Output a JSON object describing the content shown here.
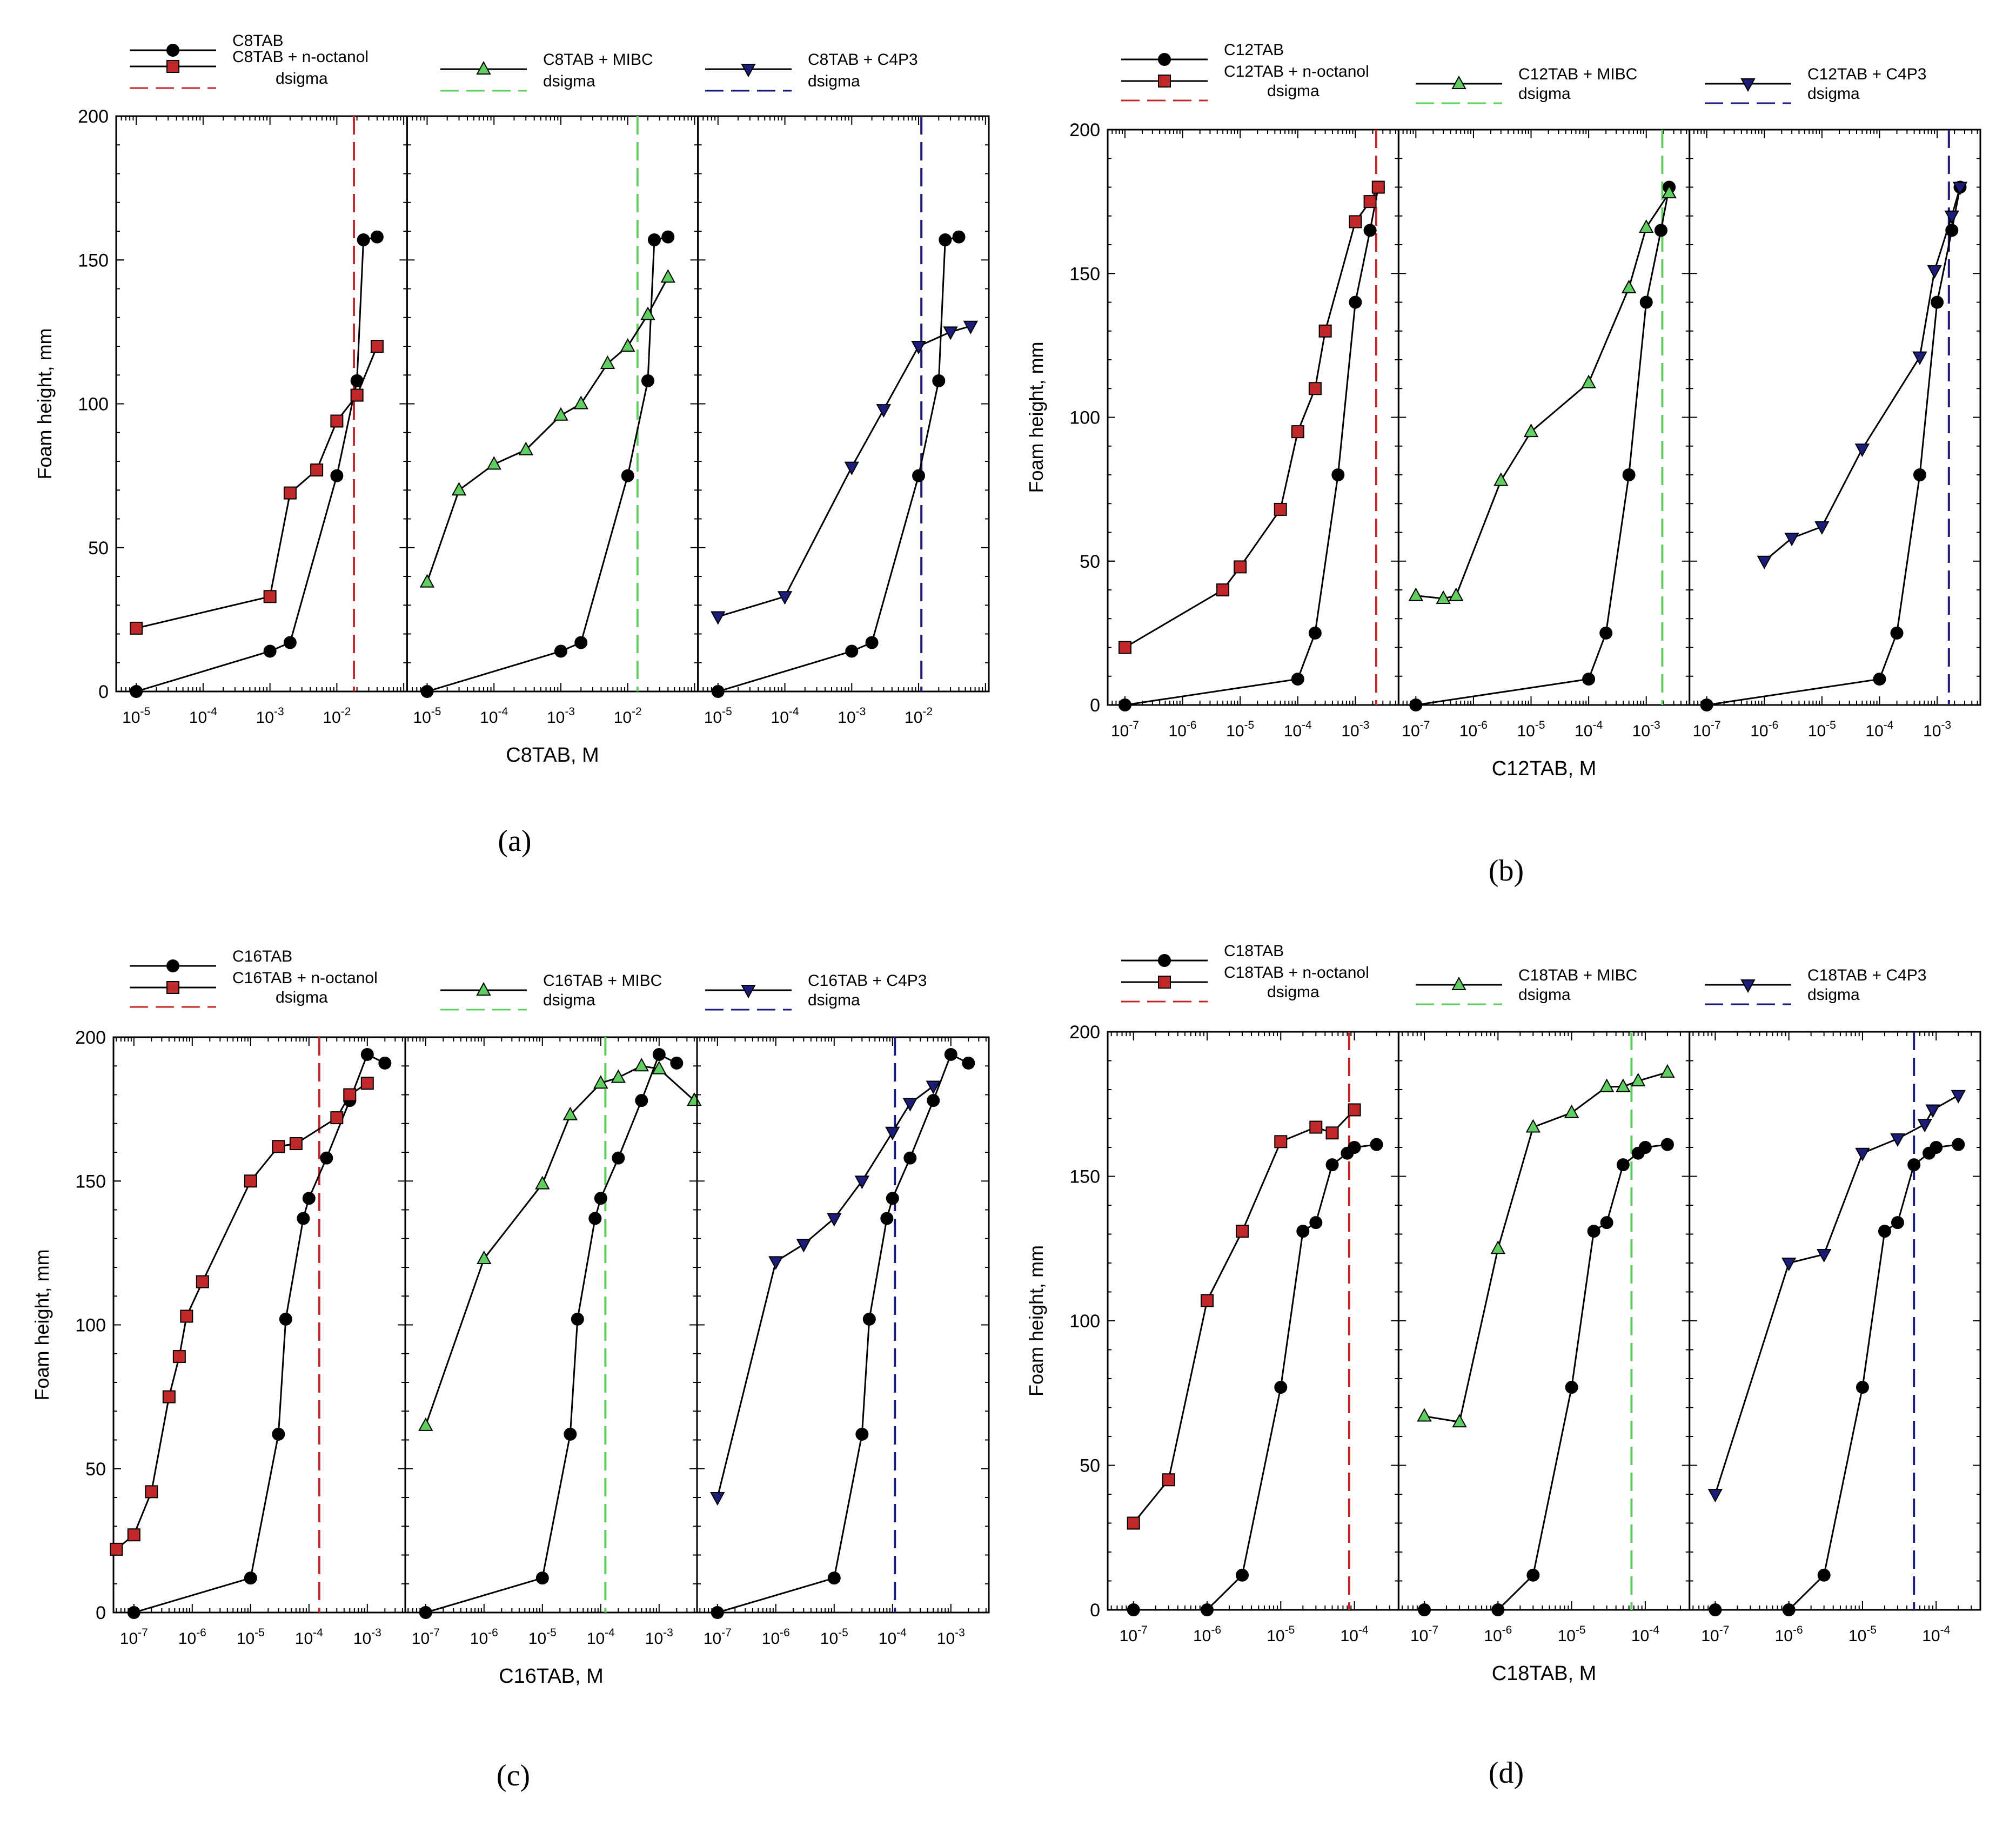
{
  "chart_data": [
    {
      "type": "line",
      "caption": "(a)",
      "ylabel": "Foam height, mm",
      "xlabel": "C8TAB, M",
      "ylim": [
        0,
        200
      ],
      "yticks": [
        0,
        50,
        100,
        150,
        200
      ],
      "xscale": "log",
      "xlim_exp": [
        -5.3,
        -0.95
      ],
      "xtick_exps": [
        -5,
        -4,
        -3,
        -2
      ],
      "baseline": {
        "name": "C8TAB",
        "x": [
          1e-05,
          0.001,
          0.002,
          0.01,
          0.02,
          0.025,
          0.04
        ],
        "y": [
          0,
          14,
          17,
          75,
          108,
          157,
          158
        ]
      },
      "legend_base": "C8TAB",
      "legend_dsigma": "dsigma",
      "panels": [
        {
          "name": "C8TAB + n-octanol",
          "marker": "square",
          "color": "#c0282a",
          "x": [
            1e-05,
            0.001,
            0.002,
            0.005,
            0.01,
            0.02,
            0.04
          ],
          "y": [
            22,
            33,
            69,
            77,
            94,
            103,
            120
          ],
          "dsigma_x": 0.018
        },
        {
          "name": "C8TAB + MIBC",
          "marker": "triangle-up",
          "color": "#5fd05f",
          "x": [
            1e-05,
            3e-05,
            0.0001,
            0.0003,
            0.001,
            0.002,
            0.005,
            0.01,
            0.02,
            0.04
          ],
          "y": [
            38,
            70,
            79,
            84,
            96,
            100,
            114,
            120,
            131,
            144
          ],
          "dsigma_x": 0.014
        },
        {
          "name": "C8TAB + C4P3",
          "marker": "triangle-down",
          "color": "#1c1c7a",
          "x": [
            1e-05,
            0.0001,
            0.001,
            0.003,
            0.01,
            0.03,
            0.06
          ],
          "y": [
            26,
            33,
            78,
            98,
            120,
            125,
            127
          ],
          "dsigma_x": 0.011
        }
      ]
    },
    {
      "type": "line",
      "caption": "(b)",
      "ylabel": "Foam height, mm",
      "xlabel": "C12TAB, M",
      "ylim": [
        0,
        200
      ],
      "yticks": [
        0,
        50,
        100,
        150,
        200
      ],
      "xscale": "log",
      "xlim_exp": [
        -7.3,
        -2.25
      ],
      "xtick_exps": [
        -7,
        -6,
        -5,
        -4,
        -3
      ],
      "baseline": {
        "name": "C12TAB",
        "x": [
          1e-07,
          0.0001,
          0.0002,
          0.0005,
          0.001,
          0.0018,
          0.0025
        ],
        "y": [
          0,
          9,
          25,
          80,
          140,
          165,
          180
        ]
      },
      "legend_base": "C12TAB",
      "legend_dsigma": "dsigma",
      "panels": [
        {
          "name": "C12TAB + n-octanol",
          "marker": "square",
          "color": "#c0282a",
          "x": [
            1e-07,
            5e-06,
            1e-05,
            5e-05,
            0.0001,
            0.0002,
            0.0003,
            0.001,
            0.0018,
            0.0025
          ],
          "y": [
            20,
            40,
            48,
            68,
            95,
            110,
            130,
            168,
            175,
            180
          ],
          "dsigma_x": 0.0023
        },
        {
          "name": "C12TAB + MIBC",
          "marker": "triangle-up",
          "color": "#5fd05f",
          "x": [
            1e-07,
            3e-07,
            5e-07,
            3e-06,
            1e-05,
            0.0001,
            0.0005,
            0.001,
            0.0025
          ],
          "y": [
            38,
            37,
            38,
            78,
            95,
            112,
            145,
            166,
            178
          ],
          "dsigma_x": 0.0019
        },
        {
          "name": "C12TAB + C4P3",
          "marker": "triangle-down",
          "color": "#1c1c7a",
          "x": [
            1e-06,
            3e-06,
            1e-05,
            5e-05,
            0.0005,
            0.0009,
            0.0018,
            0.0025
          ],
          "y": [
            50,
            58,
            62,
            89,
            121,
            151,
            170,
            180
          ],
          "dsigma_x": 0.0016
        }
      ]
    },
    {
      "type": "line",
      "caption": "(c)",
      "ylabel": "Foam height, mm",
      "xlabel": "C16TAB, M",
      "ylim": [
        0,
        200
      ],
      "yticks": [
        0,
        50,
        100,
        150,
        200
      ],
      "xscale": "log",
      "xlim_exp": [
        -7.35,
        -2.35
      ],
      "xtick_exps": [
        -7,
        -6,
        -5,
        -4,
        -3
      ],
      "baseline": {
        "name": "C16TAB",
        "x": [
          1e-07,
          1e-05,
          3e-05,
          4e-05,
          8e-05,
          0.0001,
          0.0002,
          0.0005,
          0.001,
          0.002
        ],
        "y": [
          0,
          12,
          62,
          102,
          137,
          144,
          158,
          178,
          194,
          191
        ]
      },
      "legend_base": "C16TAB",
      "legend_dsigma": "dsigma",
      "panels": [
        {
          "name": "C16TAB + n-octanol",
          "marker": "square",
          "color": "#c0282a",
          "x": [
            5e-08,
            1e-07,
            2e-07,
            4e-07,
            6e-07,
            8e-07,
            1.5e-06,
            1e-05,
            3e-05,
            6e-05,
            0.0003,
            0.0005,
            0.001
          ],
          "y": [
            22,
            27,
            42,
            75,
            89,
            103,
            115,
            150,
            162,
            163,
            172,
            180,
            184
          ],
          "dsigma_x": 0.00015
        },
        {
          "name": "C16TAB + MIBC",
          "marker": "triangle-up",
          "color": "#5fd05f",
          "x": [
            1e-07,
            1e-06,
            1e-05,
            3e-05,
            0.0001,
            0.0002,
            0.0005,
            0.001,
            0.004
          ],
          "y": [
            65,
            123,
            149,
            173,
            184,
            186,
            190,
            189,
            178
          ],
          "dsigma_x": 0.00012
        },
        {
          "name": "C16TAB + C4P3",
          "marker": "triangle-down",
          "color": "#1c1c7a",
          "x": [
            1e-07,
            1e-06,
            3e-06,
            1e-05,
            3e-05,
            0.0001,
            0.0002,
            0.0005
          ],
          "y": [
            40,
            122,
            128,
            137,
            150,
            167,
            177,
            183
          ],
          "dsigma_x": 0.00011
        }
      ]
    },
    {
      "type": "line",
      "caption": "(d)",
      "ylabel": "Foam height, mm",
      "xlabel": "C18TAB, M",
      "ylim": [
        0,
        200
      ],
      "yticks": [
        0,
        50,
        100,
        150,
        200
      ],
      "xscale": "log",
      "xlim_exp": [
        -7.35,
        -3.4
      ],
      "xtick_exps": [
        -7,
        -6,
        -5,
        -4
      ],
      "baseline": {
        "name": "C18TAB",
        "x": [
          1e-07,
          1e-06,
          3e-06,
          1e-05,
          2e-05,
          3e-05,
          5e-05,
          8e-05,
          0.0001,
          0.0002
        ],
        "y": [
          0,
          0,
          12,
          77,
          131,
          134,
          154,
          158,
          160,
          161
        ]
      },
      "legend_base": "C18TAB",
      "legend_dsigma": "dsigma",
      "panels": [
        {
          "name": "C18TAB + n-octanol",
          "marker": "square",
          "color": "#c0282a",
          "x": [
            1e-07,
            3e-07,
            1e-06,
            3e-06,
            1e-05,
            3e-05,
            5e-05,
            0.0001
          ],
          "y": [
            30,
            45,
            107,
            131,
            162,
            167,
            165,
            173
          ],
          "dsigma_x": 8.5e-05
        },
        {
          "name": "C18TAB + MIBC",
          "marker": "triangle-up",
          "color": "#5fd05f",
          "x": [
            1e-07,
            3e-07,
            1e-06,
            3e-06,
            1e-05,
            3e-05,
            5e-05,
            8e-05,
            0.0002
          ],
          "y": [
            67,
            65,
            125,
            167,
            172,
            181,
            181,
            183,
            186
          ],
          "dsigma_x": 6.5e-05
        },
        {
          "name": "C18TAB + C4P3",
          "marker": "triangle-down",
          "color": "#1c1c7a",
          "x": [
            1e-07,
            1e-06,
            3e-06,
            1e-05,
            3e-05,
            7e-05,
            9e-05,
            0.0002
          ],
          "y": [
            40,
            120,
            123,
            158,
            163,
            168,
            173,
            178
          ],
          "dsigma_x": 5e-05
        }
      ]
    }
  ]
}
